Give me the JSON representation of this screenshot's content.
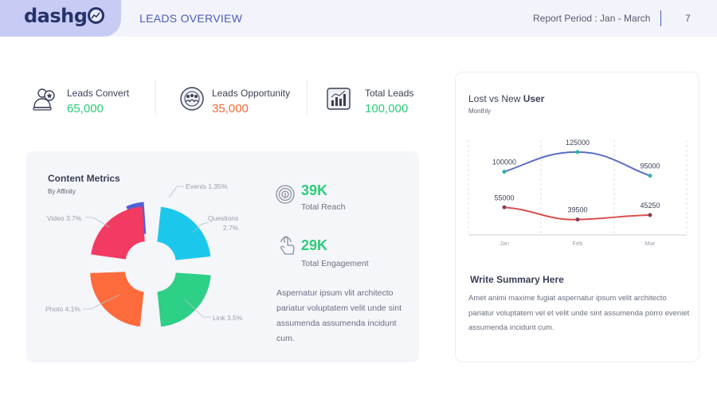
{
  "header": {
    "logo_text": "dashg",
    "page_title": "LEADS OVERVIEW",
    "report_period": "Report Period : Jan - March",
    "page_number": "7"
  },
  "stats": [
    {
      "label": "Leads Convert",
      "value": "65,000",
      "color": "#2ecc7a",
      "icon": "users-star-icon"
    },
    {
      "label": "Leads Opportunity",
      "value": "35,000",
      "color": "#f06a3b",
      "icon": "team-circle-icon"
    },
    {
      "label": "Total Leads",
      "value": "100,000",
      "color": "#2ecc7a",
      "icon": "bar-chart-icon"
    }
  ],
  "content_metrics": {
    "title": "Content Metrics",
    "subtitle": "By Affinity",
    "segments": [
      {
        "label": "Events 1.35%",
        "value": 1.35,
        "color": "#5361d6"
      },
      {
        "label": "Questions\n2.7%",
        "value": 2.7,
        "color": "#1bc8ec"
      },
      {
        "label": "Link 3.5%",
        "value": 3.5,
        "color": "#2ecf86"
      },
      {
        "label": "Photo 4.1%",
        "value": 4.1,
        "color": "#fd6b3c"
      },
      {
        "label": "Video 3.7%",
        "value": 3.7,
        "color": "#f23a63"
      }
    ]
  },
  "kpis": [
    {
      "value": "39K",
      "label": "Total Reach",
      "icon": "fingerprint-icon"
    },
    {
      "value": "29K",
      "label": "Total Engagement",
      "icon": "touch-icon"
    }
  ],
  "description": "Aspernatur ipsum vlit architecto pariatur voluptatem velit unde sint assumenda assumenda incidunt cum.",
  "user_chart": {
    "title_prefix": "Lost vs New ",
    "title_bold": "User",
    "subtitle": "Monthly",
    "summary_title": "Write Summary Here",
    "summary_text": "Amet animi maxime fugiat aspernatur ipsum velit architecto pariatur voluptatem vel et velit unde sint assumenda porro eveniet assumenda incidunt cum."
  },
  "chart_data": {
    "type": "line",
    "categories": [
      "Jan",
      "Feb",
      "Mar"
    ],
    "series": [
      {
        "values": [
          100000,
          125000,
          95000
        ],
        "labels": [
          "100000",
          "125000",
          "95000"
        ],
        "color": "#5a6fc7",
        "point_color": "#33b5a5"
      },
      {
        "values": [
          55000,
          39500,
          45250
        ],
        "labels": [
          "55000",
          "39500",
          "45250"
        ],
        "color": "#d95050",
        "point_color": "#8a3a5a"
      }
    ],
    "grid": "vertical dashed",
    "legend": "none"
  }
}
